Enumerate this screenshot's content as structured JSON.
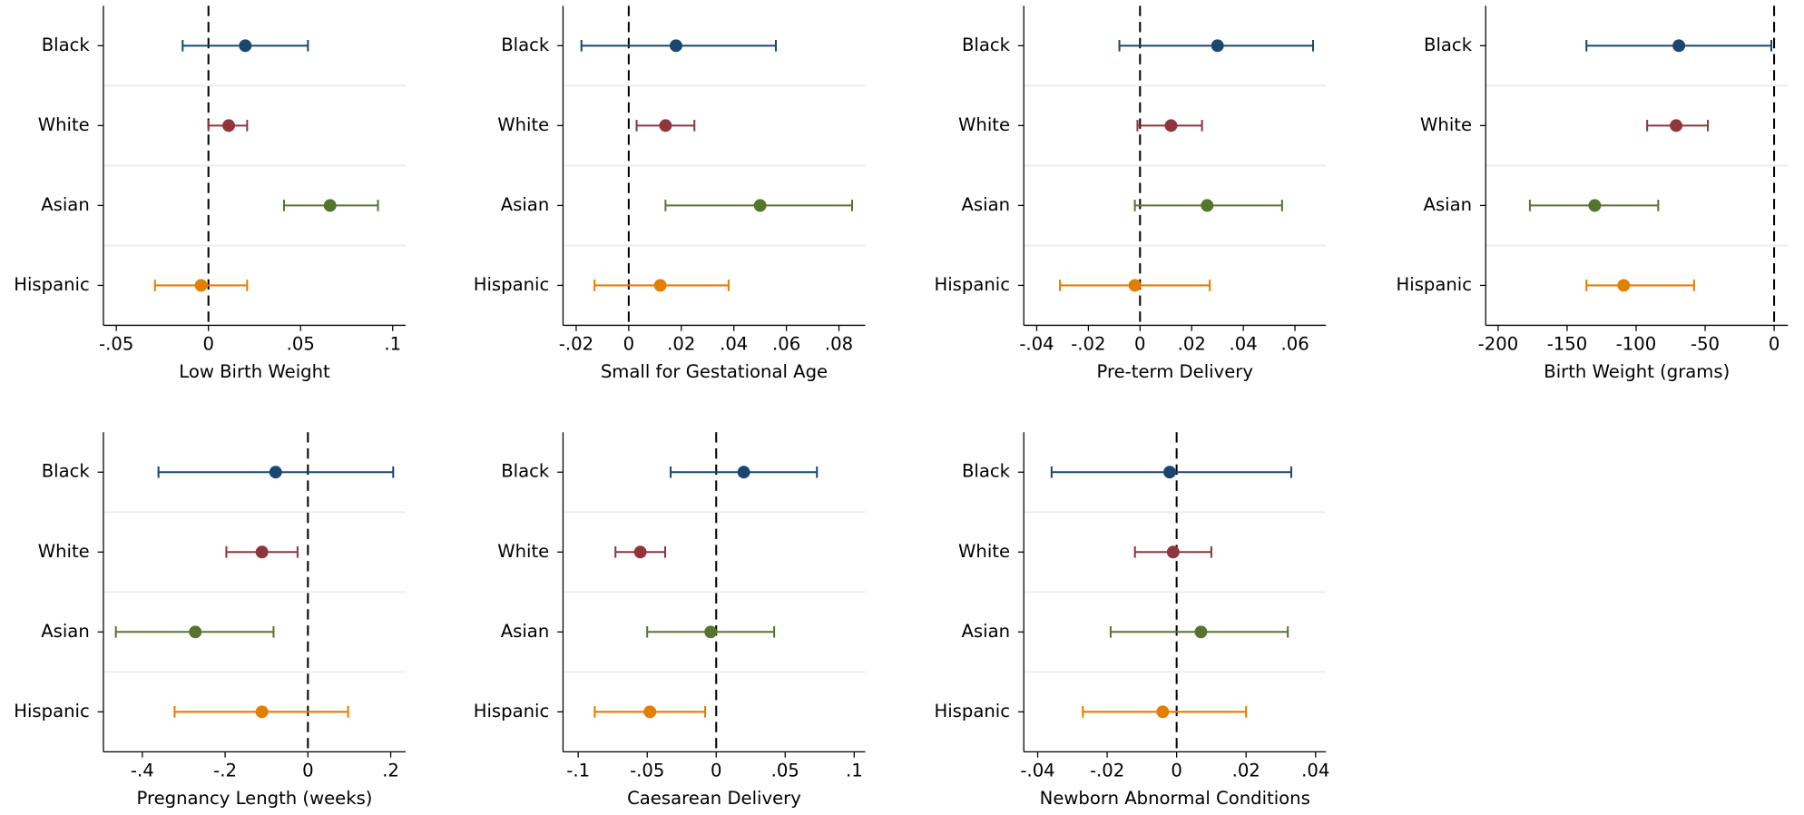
{
  "chart_data": [
    {
      "type": "errorbar",
      "xlabel": "Low Birth Weight",
      "categories": [
        "Black",
        "White",
        "Asian",
        "Hispanic"
      ],
      "colors": [
        "#1a476f",
        "#90353b",
        "#55752f",
        "#e37e00"
      ],
      "values": [
        0.02,
        0.011,
        0.066,
        -0.004
      ],
      "ci_low": [
        -0.014,
        0,
        0.041,
        -0.029
      ],
      "ci_high": [
        0.054,
        0.021,
        0.092,
        0.021
      ],
      "xlim": [
        -0.057,
        0.107
      ],
      "xticks": [
        {
          "value": -0.05,
          "label": "-.05"
        },
        0,
        {
          "value": 0.05,
          "label": ".05"
        },
        {
          "value": 0.1,
          "label": ".1"
        }
      ],
      "xline": 0,
      "grid": true
    },
    {
      "type": "errorbar",
      "xlabel": "Small for Gestational Age",
      "categories": [
        "Black",
        "White",
        "Asian",
        "Hispanic"
      ],
      "colors": [
        "#1a476f",
        "#90353b",
        "#55752f",
        "#e37e00"
      ],
      "values": [
        0.018,
        0.014,
        0.05,
        0.012
      ],
      "ci_low": [
        -0.018,
        0.003,
        0.014,
        -0.013
      ],
      "ci_high": [
        0.056,
        0.025,
        0.085,
        0.038
      ],
      "xlim": [
        -0.025,
        0.09
      ],
      "xticks": [
        {
          "value": -0.02,
          "label": "-.02"
        },
        0,
        {
          "value": 0.02,
          "label": ".02"
        },
        {
          "value": 0.04,
          "label": ".04"
        },
        {
          "value": 0.06,
          "label": ".06"
        },
        {
          "value": 0.08,
          "label": ".08"
        }
      ],
      "xline": 0,
      "grid": true
    },
    {
      "type": "errorbar",
      "xlabel": "Pre-term Delivery",
      "categories": [
        "Black",
        "White",
        "Asian",
        "Hispanic"
      ],
      "colors": [
        "#1a476f",
        "#90353b",
        "#55752f",
        "#e37e00"
      ],
      "values": [
        0.03,
        0.012,
        0.026,
        -0.002
      ],
      "ci_low": [
        -0.008,
        -0.001,
        -0.002,
        -0.031
      ],
      "ci_high": [
        0.067,
        0.024,
        0.055,
        0.027
      ],
      "xlim": [
        -0.045,
        0.072
      ],
      "xticks": [
        {
          "value": -0.04,
          "label": "-.04"
        },
        {
          "value": -0.02,
          "label": "-.02"
        },
        0,
        {
          "value": 0.02,
          "label": ".02"
        },
        {
          "value": 0.04,
          "label": ".04"
        },
        {
          "value": 0.06,
          "label": ".06"
        }
      ],
      "xline": 0,
      "grid": true
    },
    {
      "type": "errorbar",
      "xlabel": "Birth Weight (grams)",
      "categories": [
        "Black",
        "White",
        "Asian",
        "Hispanic"
      ],
      "colors": [
        "#1a476f",
        "#90353b",
        "#55752f",
        "#e37e00"
      ],
      "values": [
        -69,
        -71,
        -130,
        -109
      ],
      "ci_low": [
        -136,
        -92,
        -177,
        -136
      ],
      "ci_high": [
        -2,
        -48,
        -84,
        -58
      ],
      "xlim": [
        -209,
        10
      ],
      "xticks": [
        -200,
        -150,
        -100,
        -50,
        0
      ],
      "xline": 0,
      "grid": true
    },
    {
      "type": "errorbar",
      "xlabel": "Pregnancy Length (weeks)",
      "categories": [
        "Black",
        "White",
        "Asian",
        "Hispanic"
      ],
      "colors": [
        "#1a476f",
        "#90353b",
        "#55752f",
        "#e37e00"
      ],
      "values": [
        -0.078,
        -0.111,
        -0.272,
        -0.111
      ],
      "ci_low": [
        -0.361,
        -0.197,
        -0.464,
        -0.322
      ],
      "ci_high": [
        0.206,
        -0.025,
        -0.083,
        0.097
      ],
      "xlim": [
        -0.494,
        0.236
      ],
      "xticks": [
        {
          "value": -0.4,
          "label": "-.4"
        },
        {
          "value": -0.2,
          "label": "-.2"
        },
        0,
        {
          "value": 0.2,
          "label": ".2"
        }
      ],
      "xline": 0,
      "grid": true
    },
    {
      "type": "errorbar",
      "xlabel": "Caesarean Delivery",
      "categories": [
        "Black",
        "White",
        "Asian",
        "Hispanic"
      ],
      "colors": [
        "#1a476f",
        "#90353b",
        "#55752f",
        "#e37e00"
      ],
      "values": [
        0.02,
        -0.055,
        -0.004,
        -0.048
      ],
      "ci_low": [
        -0.033,
        -0.073,
        -0.05,
        -0.088
      ],
      "ci_high": [
        0.073,
        -0.037,
        0.042,
        -0.008
      ],
      "xlim": [
        -0.111,
        0.108
      ],
      "xticks": [
        {
          "value": -0.1,
          "label": "-.1"
        },
        {
          "value": -0.05,
          "label": "-.05"
        },
        0,
        {
          "value": 0.05,
          "label": ".05"
        },
        {
          "value": 0.1,
          "label": ".1"
        }
      ],
      "xline": 0,
      "grid": true
    },
    {
      "type": "errorbar",
      "xlabel": "Newborn Abnormal Conditions",
      "categories": [
        "Black",
        "White",
        "Asian",
        "Hispanic"
      ],
      "colors": [
        "#1a476f",
        "#90353b",
        "#55752f",
        "#e37e00"
      ],
      "values": [
        -0.002,
        -0.001,
        0.007,
        -0.004
      ],
      "ci_low": [
        -0.036,
        -0.012,
        -0.019,
        -0.027
      ],
      "ci_high": [
        0.033,
        0.01,
        0.032,
        0.02
      ],
      "xlim": [
        -0.044,
        0.043
      ],
      "xticks": [
        {
          "value": -0.04,
          "label": "-.04"
        },
        {
          "value": -0.02,
          "label": "-.02"
        },
        0,
        {
          "value": 0.02,
          "label": ".02"
        },
        {
          "value": 0.04,
          "label": ".04"
        }
      ],
      "xline": 0,
      "grid": true
    }
  ]
}
